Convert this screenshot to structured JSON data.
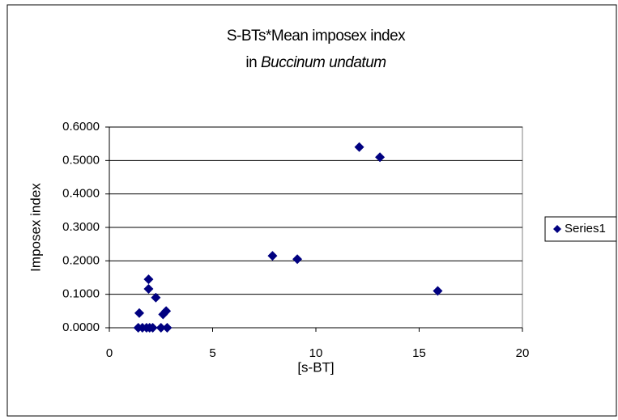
{
  "chart_data": {
    "type": "scatter",
    "title": [
      "S-BTs*Mean imposex index",
      "in",
      "Buccinum undatum"
    ],
    "x_label": "[s-BT]",
    "y_label": "Imposex index",
    "series": [
      {
        "name": "Series1",
        "color": "#000080",
        "x": [
          1.4,
          1.45,
          1.6,
          1.8,
          1.9,
          1.9,
          1.95,
          2.1,
          2.25,
          2.5,
          2.6,
          2.75,
          2.8,
          7.9,
          9.1,
          12.1,
          13.1,
          15.9
        ],
        "values": [
          0,
          0.044,
          0,
          0,
          0.145,
          0.116,
          0,
          0,
          0.09,
          0,
          0.04,
          0.05,
          0,
          0.215,
          0.205,
          0.54,
          0.51,
          0.11
        ]
      }
    ],
    "xlim": [
      0,
      20
    ],
    "xticks": [
      0,
      5,
      10,
      15,
      20
    ],
    "ylim": [
      0,
      0.6
    ],
    "yticks": [
      {
        "value": 0,
        "label": "0.0000"
      },
      {
        "value": 0.1,
        "label": "0.1000"
      },
      {
        "value": 0.2,
        "label": "0.2000"
      },
      {
        "value": 0.3,
        "label": "0.3000"
      },
      {
        "value": 0.4,
        "label": "0.4000"
      },
      {
        "value": 0.5,
        "label": "0.5000"
      },
      {
        "value": 0.6,
        "label": "0.6000"
      }
    ],
    "grid": true,
    "legend": "right"
  }
}
